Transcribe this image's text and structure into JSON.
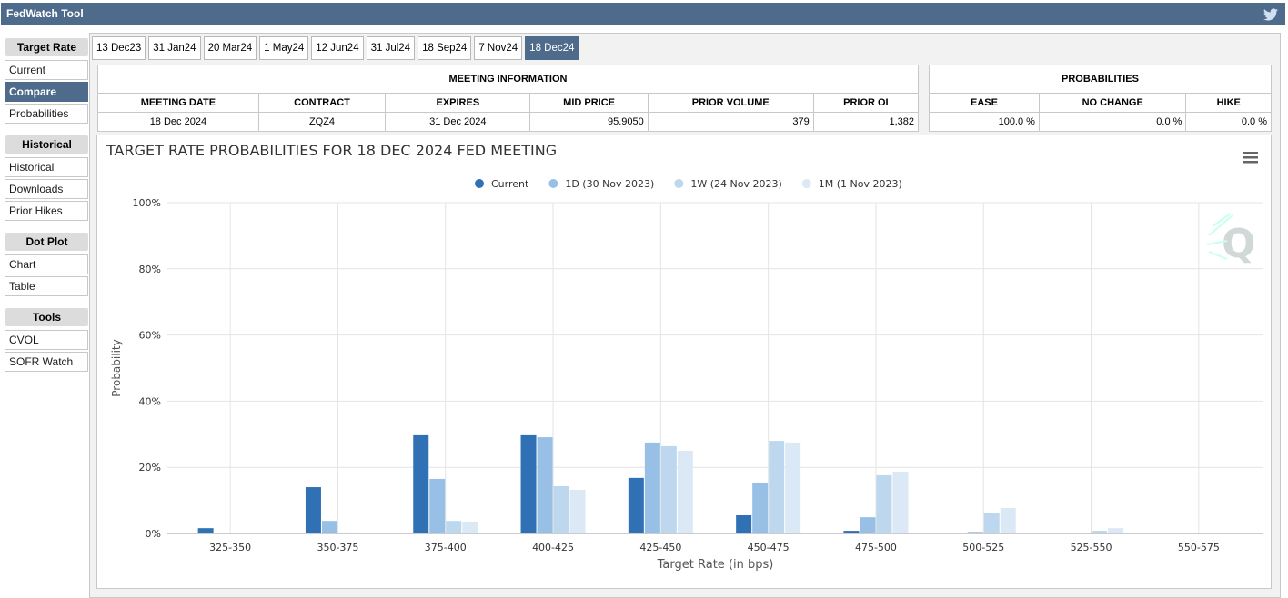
{
  "header": {
    "title": "FedWatch Tool"
  },
  "sidebar": [
    {
      "heading": "Target Rate",
      "items": [
        {
          "label": "Current"
        },
        {
          "label": "Compare",
          "active": true
        },
        {
          "label": "Probabilities"
        }
      ]
    },
    {
      "heading": "Historical",
      "items": [
        {
          "label": "Historical"
        },
        {
          "label": "Downloads"
        },
        {
          "label": "Prior Hikes"
        }
      ]
    },
    {
      "heading": "Dot Plot",
      "items": [
        {
          "label": "Chart"
        },
        {
          "label": "Table"
        }
      ]
    },
    {
      "heading": "Tools",
      "items": [
        {
          "label": "CVOL"
        },
        {
          "label": "SOFR Watch"
        }
      ]
    }
  ],
  "tabs": [
    {
      "label": "13 Dec23"
    },
    {
      "label": "31 Jan24"
    },
    {
      "label": "20 Mar24"
    },
    {
      "label": "1 May24"
    },
    {
      "label": "12 Jun24"
    },
    {
      "label": "31 Jul24"
    },
    {
      "label": "18 Sep24"
    },
    {
      "label": "7 Nov24"
    },
    {
      "label": "18 Dec24",
      "active": true
    }
  ],
  "meeting_info": {
    "title": "MEETING INFORMATION",
    "columns": [
      "MEETING DATE",
      "CONTRACT",
      "EXPIRES",
      "MID PRICE",
      "PRIOR VOLUME",
      "PRIOR OI"
    ],
    "rows": [
      [
        "18 Dec 2024",
        "ZQZ4",
        "31 Dec 2024",
        "95.9050",
        "379",
        "1,382"
      ]
    ]
  },
  "probabilities": {
    "title": "PROBABILITIES",
    "columns": [
      "EASE",
      "NO CHANGE",
      "HIKE"
    ],
    "rows": [
      [
        "100.0 %",
        "0.0 %",
        "0.0 %"
      ]
    ]
  },
  "chart_data": {
    "type": "bar",
    "title": "TARGET RATE PROBABILITIES FOR 18 DEC 2024 FED MEETING",
    "x_label": "Target Rate (in bps)",
    "y_label": "Probability",
    "categories": [
      "325-350",
      "350-375",
      "375-400",
      "400-425",
      "425-450",
      "450-475",
      "475-500",
      "500-525",
      "525-550",
      "550-575"
    ],
    "series": [
      {
        "name": "Current",
        "color": "#2f71b4",
        "values": [
          1.6,
          14.0,
          29.7,
          29.7,
          16.8,
          5.5,
          0.8,
          0,
          0,
          0
        ]
      },
      {
        "name": "1D (30 Nov 2023)",
        "color": "#98c0e6",
        "values": [
          0,
          3.8,
          16.5,
          29.1,
          27.5,
          15.4,
          4.9,
          0.5,
          0,
          0
        ]
      },
      {
        "name": "1W (24 Nov 2023)",
        "color": "#bdd7ef",
        "values": [
          0,
          0.3,
          3.8,
          14.3,
          26.4,
          28.0,
          17.6,
          6.3,
          0.8,
          0
        ]
      },
      {
        "name": "1M (1 Nov 2023)",
        "color": "#dbe8f5",
        "values": [
          0,
          0,
          3.6,
          13.2,
          25.0,
          27.5,
          18.7,
          7.7,
          1.6,
          0
        ]
      }
    ],
    "ylim": [
      0,
      100
    ],
    "yticks": [
      {
        "value": 0,
        "label": "0%"
      },
      {
        "value": 20,
        "label": "20%"
      },
      {
        "value": 40,
        "label": "40%"
      },
      {
        "value": 60,
        "label": "60%"
      },
      {
        "value": 80,
        "label": "80%"
      },
      {
        "value": 100,
        "label": "100%"
      }
    ],
    "grid": true,
    "legend": "top"
  }
}
